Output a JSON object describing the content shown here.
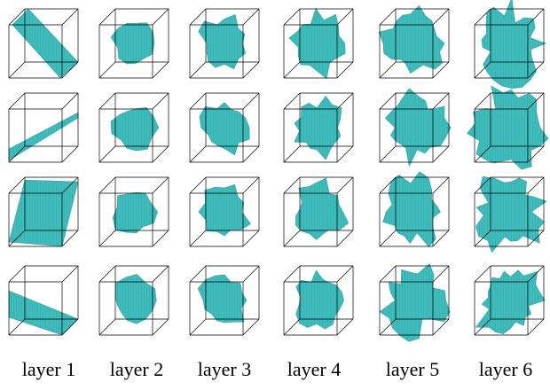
{
  "figure": {
    "column_labels": [
      "layer 1",
      "layer 2",
      "layer 3",
      "layer 4",
      "layer 5",
      "layer 6"
    ],
    "rows": 4,
    "fill_color": "#3fbcbc",
    "hatch_color": "#1f7f80",
    "edge_color": "#000000"
  }
}
